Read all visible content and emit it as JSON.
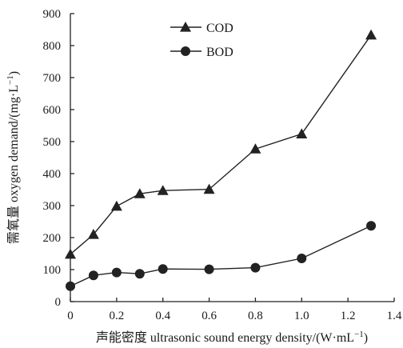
{
  "chart_data": {
    "type": "line",
    "title": "",
    "xlabel": "声能密度 ultrasonic sound energy density/(W·mL",
    "xlabel_sup": "−1",
    "xlabel_end": ")",
    "ylabel": "需氧量 oxygen demand/(mg·L",
    "ylabel_sup": "−1",
    "ylabel_end": ")",
    "xlim": [
      0,
      1.4
    ],
    "ylim": [
      0,
      900
    ],
    "xticks": [
      "0",
      "0.2",
      "0.4",
      "0.6",
      "0.8",
      "1.0",
      "1.2",
      "1.4"
    ],
    "yticks": [
      "0",
      "100",
      "200",
      "300",
      "400",
      "500",
      "600",
      "700",
      "800",
      "900"
    ],
    "grid": false,
    "legend_position": "top-center",
    "series": [
      {
        "name": "COD",
        "marker": "triangle",
        "color": "#222222",
        "x": [
          0,
          0.1,
          0.2,
          0.3,
          0.4,
          0.6,
          0.8,
          1.0,
          1.3
        ],
        "y": [
          148,
          210,
          298,
          337,
          347,
          351,
          477,
          524,
          833
        ]
      },
      {
        "name": "BOD",
        "marker": "circle",
        "color": "#222222",
        "x": [
          0,
          0.1,
          0.2,
          0.3,
          0.4,
          0.6,
          0.8,
          1.0,
          1.3
        ],
        "y": [
          48,
          82,
          91,
          87,
          102,
          101,
          106,
          135,
          237
        ]
      }
    ]
  }
}
